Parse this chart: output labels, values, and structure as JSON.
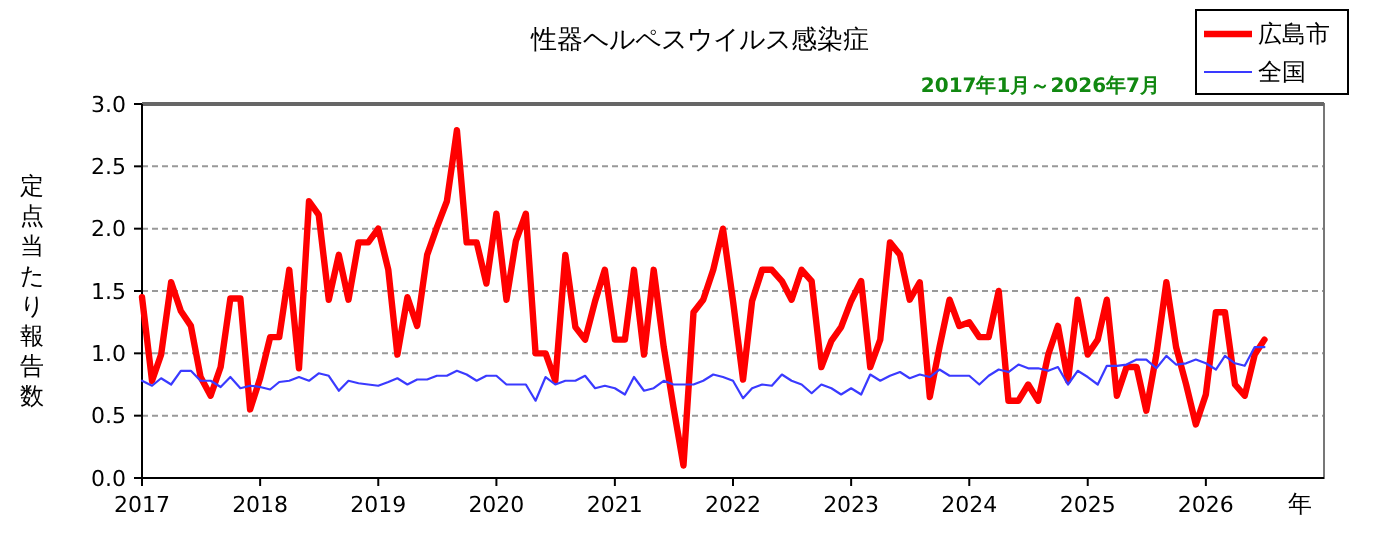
{
  "chart_data": {
    "type": "line",
    "title": "性器ヘルペスウイルス感染症",
    "subtitle": "2017年1月～2026年7月",
    "xlabel": "年",
    "ylabel": "定点当たり報告数",
    "x": [
      "2017-01",
      "2017-02",
      "2017-03",
      "2017-04",
      "2017-05",
      "2017-06",
      "2017-07",
      "2017-08",
      "2017-09",
      "2017-10",
      "2017-11",
      "2017-12",
      "2018-01",
      "2018-02",
      "2018-03",
      "2018-04",
      "2018-05",
      "2018-06",
      "2018-07",
      "2018-08",
      "2018-09",
      "2018-10",
      "2018-11",
      "2018-12",
      "2019-01",
      "2019-02",
      "2019-03",
      "2019-04",
      "2019-05",
      "2019-06",
      "2019-07",
      "2019-08",
      "2019-09",
      "2019-10",
      "2019-11",
      "2019-12",
      "2020-01",
      "2020-02",
      "2020-03",
      "2020-04",
      "2020-05",
      "2020-06",
      "2020-07",
      "2020-08",
      "2020-09",
      "2020-10",
      "2020-11",
      "2020-12",
      "2021-01",
      "2021-02",
      "2021-03",
      "2021-04",
      "2021-05",
      "2021-06",
      "2021-07",
      "2021-08",
      "2021-09",
      "2021-10",
      "2021-11",
      "2021-12",
      "2022-01",
      "2022-02",
      "2022-03",
      "2022-04",
      "2022-05",
      "2022-06",
      "2022-07",
      "2022-08",
      "2022-09",
      "2022-10",
      "2022-11",
      "2022-12",
      "2023-01",
      "2023-02",
      "2023-03",
      "2023-04",
      "2023-05",
      "2023-06",
      "2023-07",
      "2023-08",
      "2023-09",
      "2023-10",
      "2023-11",
      "2023-12",
      "2024-01",
      "2024-02",
      "2024-03",
      "2024-04",
      "2024-05",
      "2024-06",
      "2024-07",
      "2024-08",
      "2024-09",
      "2024-10",
      "2024-11",
      "2024-12",
      "2025-01",
      "2025-02",
      "2025-03",
      "2025-04",
      "2025-05",
      "2025-06",
      "2025-07",
      "2025-08",
      "2025-09",
      "2025-10",
      "2025-11",
      "2025-12",
      "2026-01",
      "2026-02",
      "2026-03",
      "2026-04",
      "2026-05",
      "2026-06",
      "2026-07"
    ],
    "series": [
      {
        "name": "広島市",
        "color": "#ff0000",
        "values": [
          1.45,
          0.78,
          0.99,
          1.57,
          1.34,
          1.22,
          0.81,
          0.66,
          0.89,
          1.44,
          1.44,
          0.55,
          0.8,
          1.13,
          1.13,
          1.67,
          0.88,
          2.22,
          2.11,
          1.43,
          1.79,
          1.43,
          1.89,
          1.89,
          2.0,
          1.67,
          0.99,
          1.45,
          1.22,
          1.79,
          2.01,
          2.22,
          2.79,
          1.89,
          1.89,
          1.56,
          2.12,
          1.43,
          1.9,
          2.12,
          1.0,
          1.0,
          0.78,
          1.79,
          1.21,
          1.11,
          1.42,
          1.67,
          1.11,
          1.11,
          1.67,
          0.99,
          1.67,
          1.05,
          0.57,
          0.1,
          1.33,
          1.43,
          1.67,
          2.0,
          1.42,
          0.79,
          1.42,
          1.67,
          1.67,
          1.58,
          1.43,
          1.67,
          1.58,
          0.89,
          1.1,
          1.21,
          1.42,
          1.58,
          0.89,
          1.11,
          1.89,
          1.79,
          1.43,
          1.57,
          0.65,
          1.05,
          1.43,
          1.22,
          1.25,
          1.13,
          1.13,
          1.5,
          0.62,
          0.62,
          0.75,
          0.62,
          0.99,
          1.22,
          0.78,
          1.43,
          0.99,
          1.11,
          1.43,
          0.66,
          0.89,
          0.89,
          0.54,
          0.99,
          1.57,
          1.05,
          0.75,
          0.43,
          0.67,
          1.33,
          1.33,
          0.75,
          0.66,
          0.99,
          1.11
        ]
      },
      {
        "name": "全国",
        "color": "#3a3aff",
        "values": [
          0.78,
          0.74,
          0.8,
          0.75,
          0.86,
          0.86,
          0.78,
          0.78,
          0.73,
          0.81,
          0.72,
          0.74,
          0.73,
          0.71,
          0.77,
          0.78,
          0.81,
          0.78,
          0.84,
          0.82,
          0.7,
          0.78,
          0.76,
          0.75,
          0.74,
          0.77,
          0.8,
          0.75,
          0.79,
          0.79,
          0.82,
          0.82,
          0.86,
          0.83,
          0.78,
          0.82,
          0.82,
          0.75,
          0.75,
          0.75,
          0.62,
          0.81,
          0.75,
          0.78,
          0.78,
          0.82,
          0.72,
          0.74,
          0.72,
          0.67,
          0.81,
          0.7,
          0.72,
          0.78,
          0.75,
          0.75,
          0.75,
          0.78,
          0.83,
          0.81,
          0.78,
          0.64,
          0.72,
          0.75,
          0.74,
          0.83,
          0.78,
          0.75,
          0.68,
          0.75,
          0.72,
          0.67,
          0.72,
          0.67,
          0.83,
          0.78,
          0.82,
          0.85,
          0.8,
          0.83,
          0.81,
          0.87,
          0.82,
          0.82,
          0.82,
          0.75,
          0.82,
          0.87,
          0.85,
          0.91,
          0.88,
          0.88,
          0.86,
          0.89,
          0.75,
          0.86,
          0.81,
          0.75,
          0.9,
          0.9,
          0.91,
          0.95,
          0.95,
          0.88,
          0.98,
          0.91,
          0.92,
          0.95,
          0.92,
          0.87,
          0.98,
          0.92,
          0.9,
          1.05,
          1.05
        ]
      }
    ],
    "xlim": [
      "2017-01",
      "2027-01"
    ],
    "xticks": [
      {
        "value": "2017-01",
        "label": "2017"
      },
      {
        "value": "2018-01",
        "label": "2018"
      },
      {
        "value": "2019-01",
        "label": "2019"
      },
      {
        "value": "2020-01",
        "label": "2020"
      },
      {
        "value": "2021-01",
        "label": "2021"
      },
      {
        "value": "2022-01",
        "label": "2022"
      },
      {
        "value": "2023-01",
        "label": "2023"
      },
      {
        "value": "2024-01",
        "label": "2024"
      },
      {
        "value": "2025-01",
        "label": "2025"
      },
      {
        "value": "2026-01",
        "label": "2026"
      }
    ],
    "ylim": [
      0,
      3
    ],
    "yticks": [
      {
        "value": 0,
        "label": "0.0"
      },
      0.5,
      {
        "value": 1,
        "label": "1.0"
      },
      1.5,
      {
        "value": 2,
        "label": "2.0"
      },
      2.5,
      {
        "value": 3,
        "label": "3.0"
      }
    ],
    "grid": "y",
    "legend": "top right",
    "marker": "none",
    "line_style": "solid"
  }
}
